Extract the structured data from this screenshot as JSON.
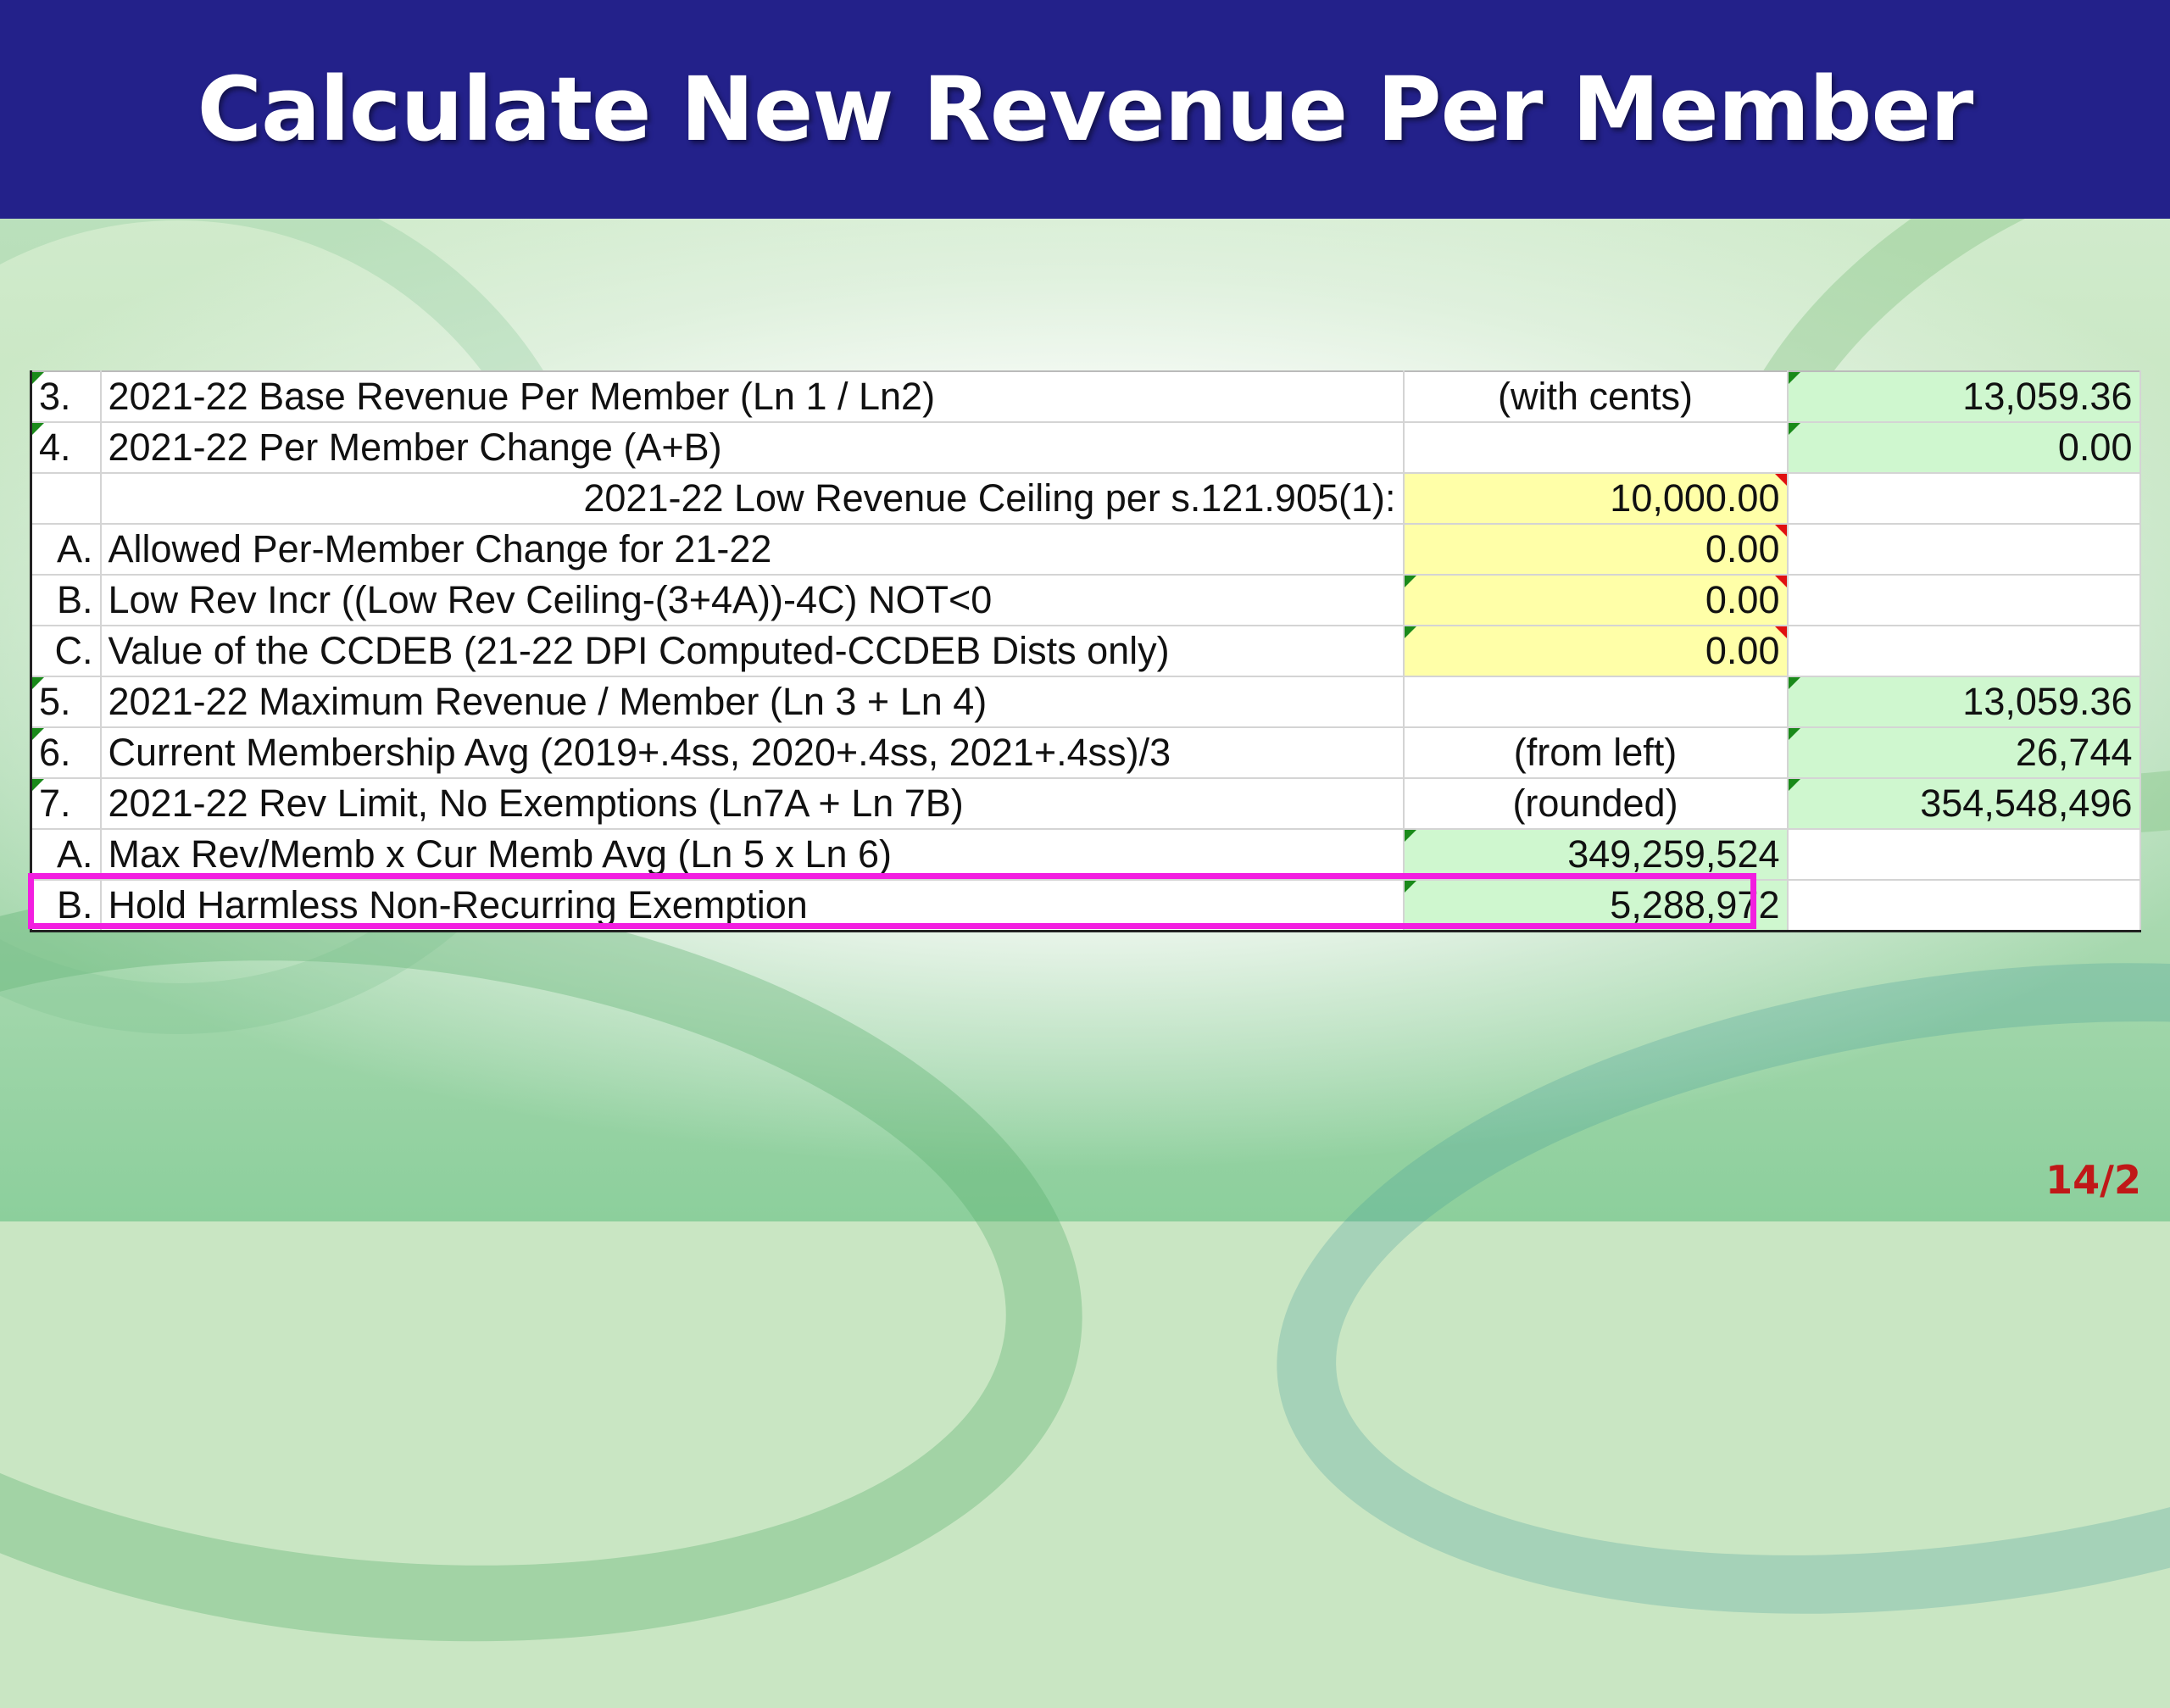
{
  "title": "Calculate New Revenue Per Member",
  "page_number": "14/2",
  "rows": [
    {
      "num": "3.",
      "label": "2021-22 Base Revenue Per Member (Ln 1 / Ln2)",
      "mid": "(with cents)",
      "value": "13,059.36"
    },
    {
      "num": "4.",
      "label": "2021-22 Per Member Change   (A+B)",
      "mid": "",
      "value": "0.00"
    },
    {
      "num": "",
      "label": "2021-22 Low Revenue Ceiling per s.121.905(1):",
      "mid": "10,000.00",
      "value": ""
    },
    {
      "num": "A.",
      "label": "Allowed Per-Member Change for 21-22",
      "mid": "0.00",
      "value": ""
    },
    {
      "num": "B.",
      "label": "Low Rev Incr ((Low Rev Ceiling-(3+4A))-4C) NOT<0",
      "mid": "0.00",
      "value": ""
    },
    {
      "num": "C.",
      "label": "Value of the CCDEB (21-22 DPI Computed-CCDEB Dists only)",
      "mid": "0.00",
      "value": ""
    },
    {
      "num": "5.",
      "label": "2021-22 Maximum Revenue / Member (Ln 3 + Ln 4)",
      "mid": "",
      "value": "13,059.36"
    },
    {
      "num": "6.",
      "label": "Current Membership Avg  (2019+.4ss, 2020+.4ss, 2021+.4ss)/3",
      "mid": "(from left)",
      "value": "26,744"
    },
    {
      "num": "7.",
      "label": "2021-22 Rev Limit, No Exemptions (Ln7A + Ln 7B)",
      "mid": "(rounded)",
      "value": "354,548,496"
    },
    {
      "num": "A.",
      "label": "Max Rev/Memb x Cur Memb Avg (Ln 5 x Ln 6)",
      "mid": "349,259,524",
      "value": ""
    },
    {
      "num": "B.",
      "label": "Hold Harmless Non-Recurring Exemption",
      "mid": "5,288,972",
      "value": ""
    }
  ]
}
